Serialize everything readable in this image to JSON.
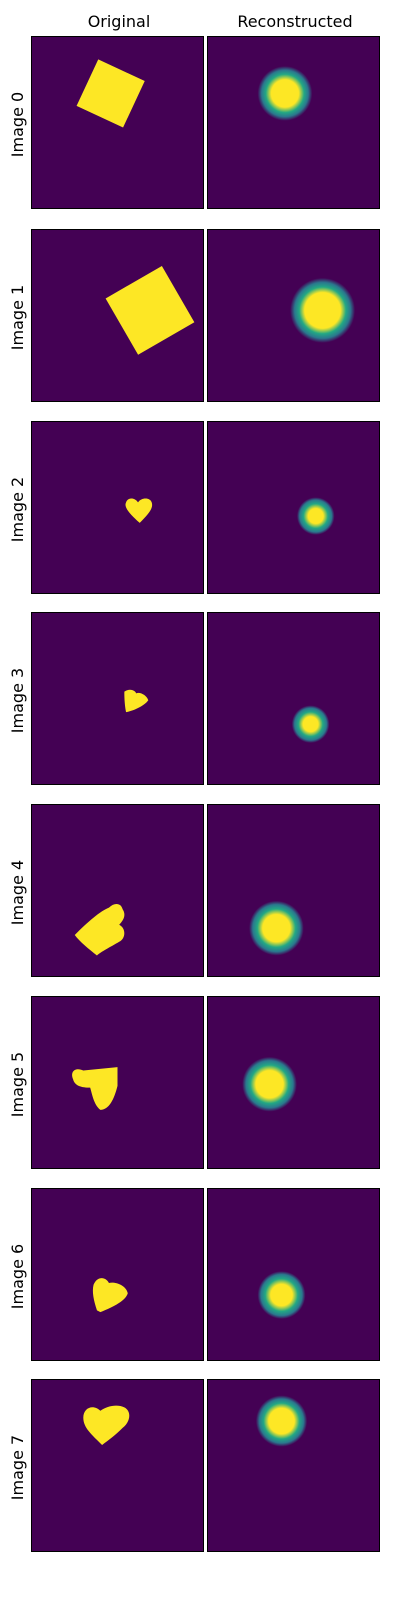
{
  "columns": [
    "Original",
    "Reconstructed"
  ],
  "colors": {
    "background": "#440154",
    "foreground": "#fde725"
  },
  "rows": [
    {
      "label": "Image 0",
      "original_shape": "square",
      "reconstruction": "blurred-circle"
    },
    {
      "label": "Image 1",
      "original_shape": "square",
      "reconstruction": "blurred-circle"
    },
    {
      "label": "Image 2",
      "original_shape": "heart",
      "reconstruction": "blurred-circle"
    },
    {
      "label": "Image 3",
      "original_shape": "heart",
      "reconstruction": "blurred-circle"
    },
    {
      "label": "Image 4",
      "original_shape": "heart",
      "reconstruction": "blurred-circle"
    },
    {
      "label": "Image 5",
      "original_shape": "heart",
      "reconstruction": "blurred-circle"
    },
    {
      "label": "Image 6",
      "original_shape": "heart",
      "reconstruction": "blurred-circle"
    },
    {
      "label": "Image 7",
      "original_shape": "heart",
      "reconstruction": "blurred-circle"
    }
  ]
}
